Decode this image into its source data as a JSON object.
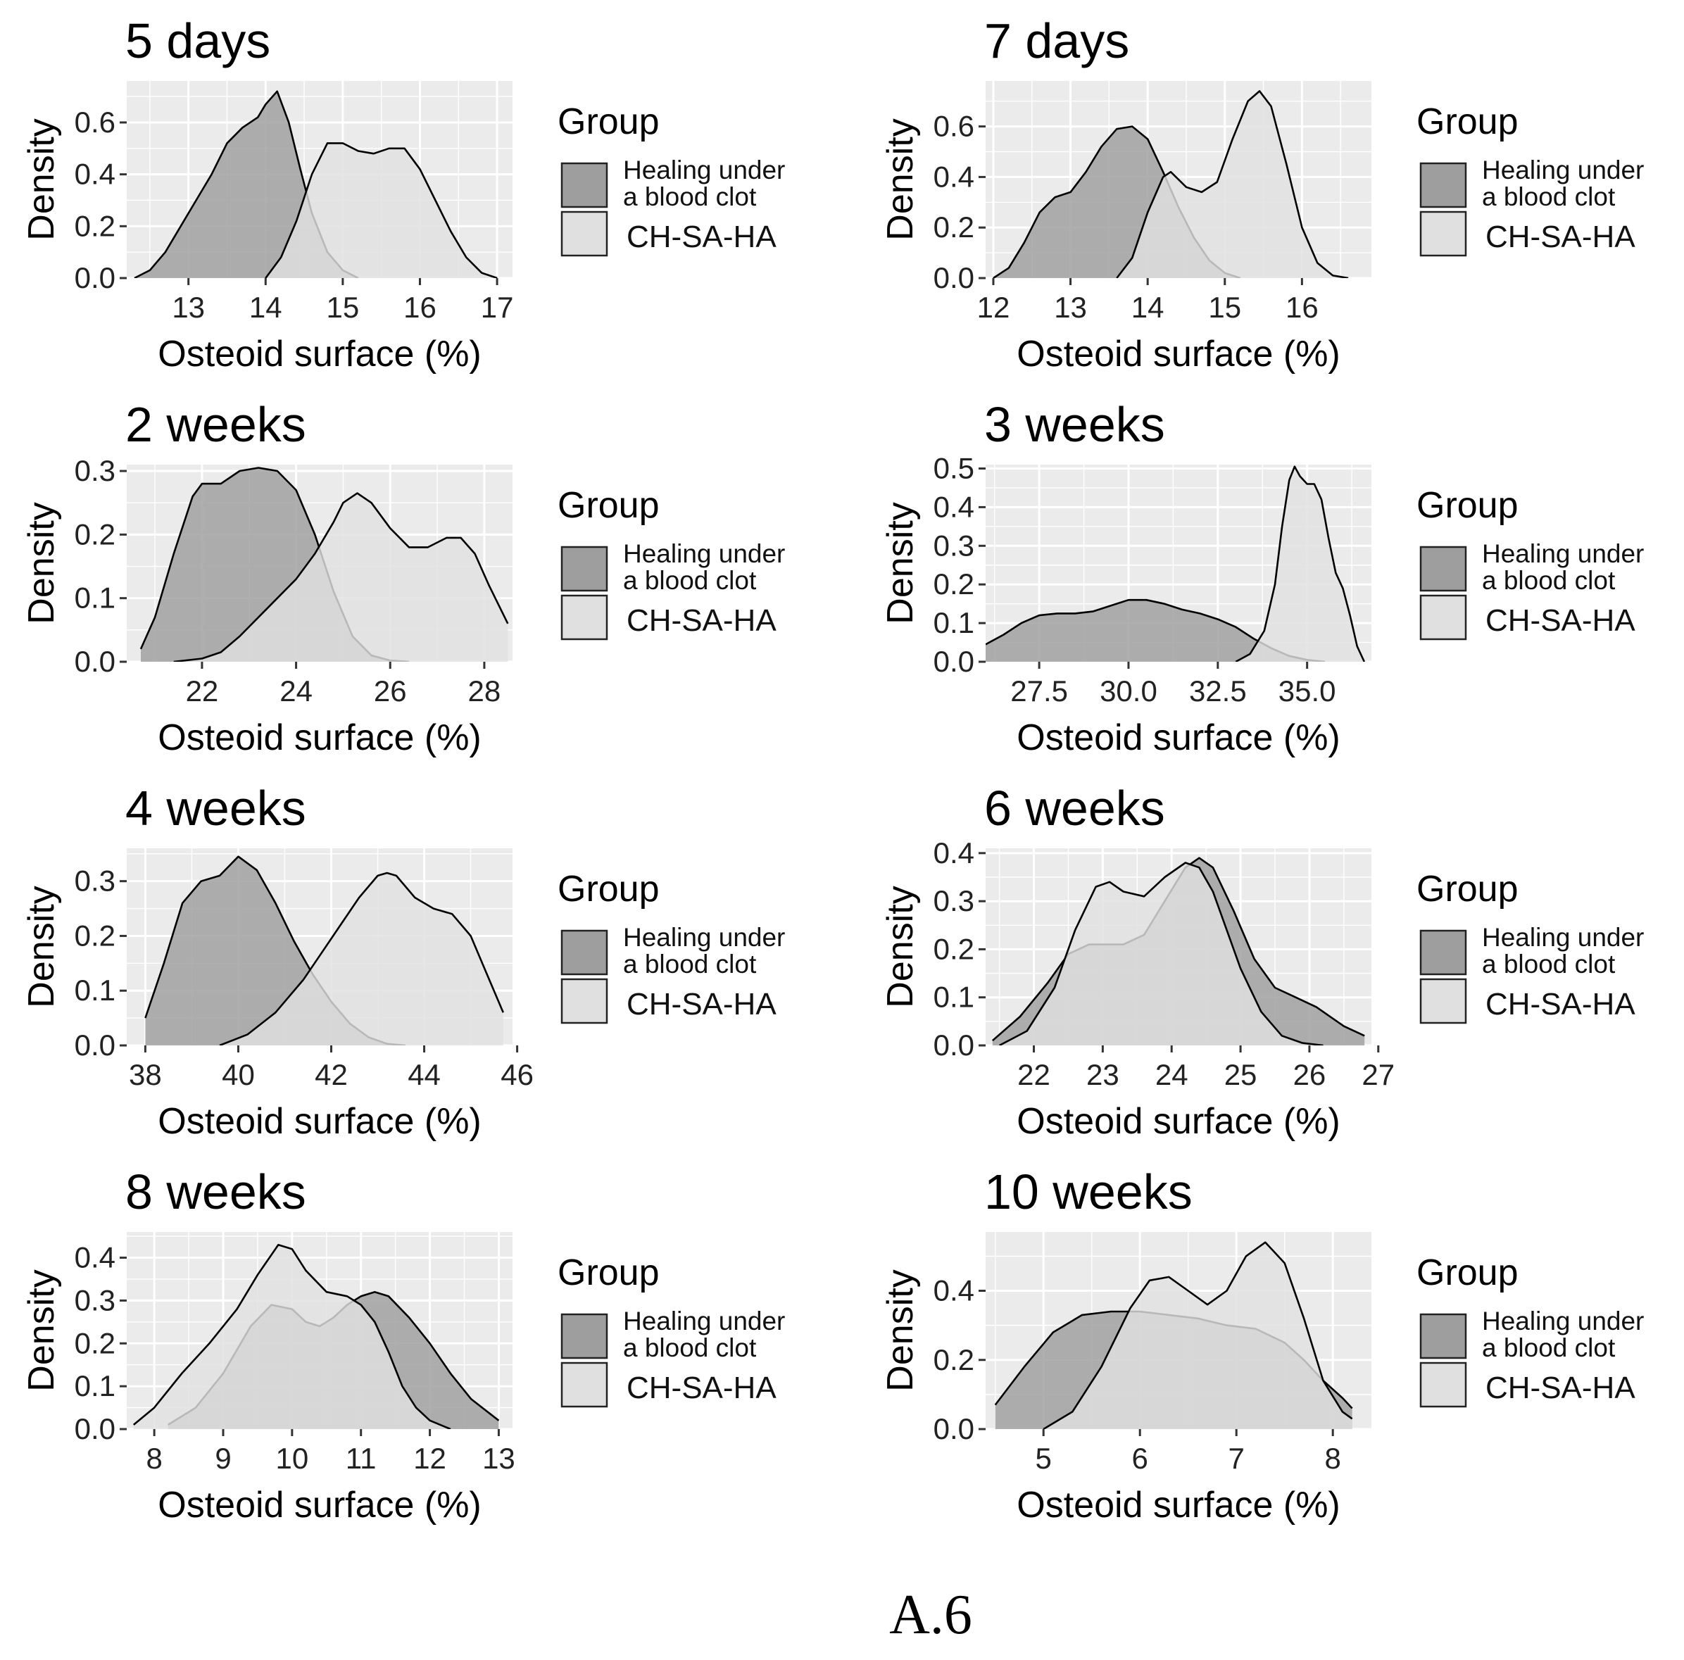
{
  "caption": "A.6",
  "colors": {
    "healing": "#9e9e9e",
    "chsaha": "#e0e0e0",
    "panel": "#ebebeb",
    "grid": "#ffffff",
    "outline": "#000000"
  },
  "chart_data": [
    {
      "type": "area",
      "title": "5 days",
      "xlabel": "Osteoid surface (%)",
      "ylabel": "Density",
      "xlim": [
        12.2,
        17.2
      ],
      "ylim": [
        0,
        0.76
      ],
      "xticks": [
        13,
        14,
        15,
        16,
        17
      ],
      "yticks": [
        0,
        0.2,
        0.4,
        0.6
      ],
      "tick_decimals": 1,
      "legend": {
        "title": "Group",
        "entries": [
          "Healing under a blood clot",
          "CH-SA-HA"
        ],
        "placement": "right"
      },
      "series": [
        {
          "name": "Healing under a blood clot",
          "x": [
            12.3,
            12.5,
            12.7,
            12.9,
            13.1,
            13.3,
            13.5,
            13.7,
            13.9,
            14.0,
            14.15,
            14.3,
            14.45,
            14.6,
            14.8,
            15.0,
            15.2
          ],
          "y": [
            0,
            0.03,
            0.1,
            0.2,
            0.3,
            0.4,
            0.52,
            0.58,
            0.62,
            0.67,
            0.72,
            0.6,
            0.42,
            0.25,
            0.1,
            0.03,
            0
          ]
        },
        {
          "name": "CH-SA-HA",
          "x": [
            14.0,
            14.2,
            14.4,
            14.6,
            14.8,
            15.0,
            15.2,
            15.4,
            15.6,
            15.8,
            16.0,
            16.2,
            16.4,
            16.6,
            16.8,
            17.0
          ],
          "y": [
            0,
            0.08,
            0.22,
            0.4,
            0.52,
            0.52,
            0.49,
            0.48,
            0.5,
            0.5,
            0.42,
            0.3,
            0.18,
            0.08,
            0.02,
            0
          ]
        }
      ]
    },
    {
      "type": "area",
      "title": "7 days",
      "xlabel": "Osteoid surface (%)",
      "ylabel": "Density",
      "xlim": [
        11.9,
        16.9
      ],
      "ylim": [
        0,
        0.78
      ],
      "xticks": [
        12,
        13,
        14,
        15,
        16
      ],
      "yticks": [
        0,
        0.2,
        0.4,
        0.6
      ],
      "tick_decimals": 1,
      "legend": {
        "title": "Group",
        "entries": [
          "Healing under a blood clot",
          "CH-SA-HA"
        ],
        "placement": "right"
      },
      "series": [
        {
          "name": "Healing under a blood clot",
          "x": [
            12.0,
            12.2,
            12.4,
            12.6,
            12.8,
            13.0,
            13.2,
            13.4,
            13.6,
            13.8,
            14.0,
            14.2,
            14.4,
            14.6,
            14.8,
            15.0,
            15.2
          ],
          "y": [
            0,
            0.04,
            0.14,
            0.26,
            0.32,
            0.34,
            0.42,
            0.52,
            0.59,
            0.6,
            0.55,
            0.42,
            0.28,
            0.16,
            0.07,
            0.02,
            0
          ]
        },
        {
          "name": "CH-SA-HA",
          "x": [
            13.6,
            13.8,
            14.0,
            14.2,
            14.3,
            14.5,
            14.7,
            14.9,
            15.1,
            15.3,
            15.45,
            15.6,
            15.8,
            16.0,
            16.2,
            16.4,
            16.6
          ],
          "y": [
            0,
            0.08,
            0.26,
            0.4,
            0.42,
            0.36,
            0.34,
            0.38,
            0.55,
            0.7,
            0.74,
            0.68,
            0.45,
            0.2,
            0.06,
            0.01,
            0
          ]
        }
      ]
    },
    {
      "type": "area",
      "title": "2 weeks",
      "xlabel": "Osteoid surface (%)",
      "ylabel": "Density",
      "xlim": [
        20.4,
        28.6
      ],
      "ylim": [
        0,
        0.31
      ],
      "xticks": [
        22,
        24,
        26,
        28
      ],
      "yticks": [
        0,
        0.1,
        0.2,
        0.3
      ],
      "tick_decimals": 1,
      "legend": {
        "title": "Group",
        "entries": [
          "Healing under a blood clot",
          "CH-SA-HA"
        ],
        "placement": "right"
      },
      "series": [
        {
          "name": "Healing under a blood clot",
          "x": [
            20.7,
            21.0,
            21.4,
            21.8,
            22.0,
            22.4,
            22.8,
            23.2,
            23.6,
            24.0,
            24.4,
            24.8,
            25.2,
            25.6,
            26.0,
            26.4
          ],
          "y": [
            0.02,
            0.07,
            0.17,
            0.26,
            0.28,
            0.28,
            0.3,
            0.305,
            0.3,
            0.27,
            0.2,
            0.11,
            0.04,
            0.01,
            0.002,
            0
          ]
        },
        {
          "name": "CH-SA-HA",
          "x": [
            21.4,
            22.0,
            22.4,
            22.8,
            23.2,
            23.6,
            24.0,
            24.4,
            24.8,
            25.0,
            25.3,
            25.6,
            26.0,
            26.4,
            26.8,
            27.2,
            27.5,
            27.8,
            28.1,
            28.5
          ],
          "y": [
            0,
            0.005,
            0.015,
            0.04,
            0.07,
            0.1,
            0.13,
            0.17,
            0.22,
            0.25,
            0.265,
            0.25,
            0.21,
            0.18,
            0.18,
            0.195,
            0.195,
            0.17,
            0.12,
            0.06
          ]
        }
      ]
    },
    {
      "type": "area",
      "title": "3 weeks",
      "xlabel": "Osteoid surface (%)",
      "ylabel": "Density",
      "xlim": [
        26.0,
        36.8
      ],
      "ylim": [
        0,
        0.51
      ],
      "xticks": [
        27.5,
        30.0,
        32.5,
        35.0
      ],
      "yticks": [
        0,
        0.1,
        0.2,
        0.3,
        0.4,
        0.5
      ],
      "tick_decimals": 1,
      "legend": {
        "title": "Group",
        "entries": [
          "Healing under a blood clot",
          "CH-SA-HA"
        ],
        "placement": "right"
      },
      "series": [
        {
          "name": "Healing under a blood clot",
          "x": [
            26.0,
            26.5,
            27.0,
            27.5,
            28.0,
            28.5,
            29.0,
            29.5,
            30.0,
            30.5,
            31.0,
            31.5,
            32.0,
            32.5,
            33.0,
            33.5,
            34.0,
            34.5,
            35.0,
            35.5
          ],
          "y": [
            0.045,
            0.07,
            0.1,
            0.12,
            0.125,
            0.125,
            0.13,
            0.145,
            0.16,
            0.16,
            0.15,
            0.135,
            0.125,
            0.11,
            0.09,
            0.06,
            0.035,
            0.015,
            0.005,
            0
          ]
        },
        {
          "name": "CH-SA-HA",
          "x": [
            33.0,
            33.4,
            33.8,
            34.1,
            34.3,
            34.5,
            34.65,
            34.8,
            35.0,
            35.2,
            35.4,
            35.6,
            35.8,
            36.0,
            36.2,
            36.4,
            36.6
          ],
          "y": [
            0,
            0.02,
            0.08,
            0.2,
            0.35,
            0.47,
            0.505,
            0.48,
            0.46,
            0.46,
            0.42,
            0.32,
            0.23,
            0.19,
            0.12,
            0.04,
            0
          ]
        }
      ]
    },
    {
      "type": "area",
      "title": "4 weeks",
      "xlabel": "Osteoid surface (%)",
      "ylabel": "Density",
      "xlim": [
        37.6,
        45.9
      ],
      "ylim": [
        0,
        0.36
      ],
      "xticks": [
        38,
        40,
        42,
        44,
        46
      ],
      "yticks": [
        0,
        0.1,
        0.2,
        0.3
      ],
      "tick_decimals": 1,
      "legend": {
        "title": "Group",
        "entries": [
          "Healing under a blood clot",
          "CH-SA-HA"
        ],
        "placement": "right"
      },
      "series": [
        {
          "name": "Healing under a blood clot",
          "x": [
            38.0,
            38.4,
            38.8,
            39.2,
            39.6,
            40.0,
            40.4,
            40.8,
            41.2,
            41.6,
            42.0,
            42.4,
            42.8,
            43.2,
            43.6
          ],
          "y": [
            0.05,
            0.15,
            0.26,
            0.3,
            0.31,
            0.345,
            0.32,
            0.26,
            0.19,
            0.13,
            0.08,
            0.04,
            0.015,
            0.003,
            0
          ]
        },
        {
          "name": "CH-SA-HA",
          "x": [
            39.6,
            40.2,
            40.8,
            41.4,
            41.8,
            42.2,
            42.6,
            43.0,
            43.2,
            43.4,
            43.8,
            44.2,
            44.6,
            45.0,
            45.4,
            45.7
          ],
          "y": [
            0,
            0.02,
            0.06,
            0.12,
            0.17,
            0.22,
            0.27,
            0.31,
            0.315,
            0.31,
            0.27,
            0.25,
            0.24,
            0.2,
            0.12,
            0.06
          ]
        }
      ]
    },
    {
      "type": "area",
      "title": "6 weeks",
      "xlabel": "Osteoid surface (%)",
      "ylabel": "Density",
      "xlim": [
        21.3,
        26.9
      ],
      "ylim": [
        0,
        0.41
      ],
      "xticks": [
        22,
        23,
        24,
        25,
        26,
        27
      ],
      "yticks": [
        0,
        0.1,
        0.2,
        0.3,
        0.4
      ],
      "tick_decimals": 1,
      "legend": {
        "title": "Group",
        "entries": [
          "Healing under a blood clot",
          "CH-SA-HA"
        ],
        "placement": "right"
      },
      "series": [
        {
          "name": "Healing under a blood clot",
          "x": [
            21.4,
            21.8,
            22.2,
            22.5,
            22.8,
            23.0,
            23.3,
            23.6,
            23.9,
            24.2,
            24.4,
            24.6,
            24.9,
            25.2,
            25.5,
            25.8,
            26.1,
            26.5,
            26.8
          ],
          "y": [
            0.01,
            0.06,
            0.13,
            0.19,
            0.21,
            0.21,
            0.21,
            0.23,
            0.3,
            0.37,
            0.39,
            0.37,
            0.28,
            0.18,
            0.12,
            0.1,
            0.08,
            0.04,
            0.02
          ]
        },
        {
          "name": "CH-SA-HA",
          "x": [
            21.5,
            21.9,
            22.3,
            22.6,
            22.9,
            23.1,
            23.3,
            23.6,
            23.9,
            24.2,
            24.4,
            24.6,
            24.8,
            25.0,
            25.3,
            25.6,
            25.9,
            26.2
          ],
          "y": [
            0,
            0.03,
            0.12,
            0.24,
            0.33,
            0.34,
            0.32,
            0.31,
            0.35,
            0.38,
            0.37,
            0.32,
            0.24,
            0.16,
            0.07,
            0.02,
            0.005,
            0
          ]
        }
      ]
    },
    {
      "type": "area",
      "title": "8 weeks",
      "xlabel": "Osteoid surface (%)",
      "ylabel": "Density",
      "xlim": [
        7.6,
        13.2
      ],
      "ylim": [
        0,
        0.46
      ],
      "xticks": [
        8,
        9,
        10,
        11,
        12,
        13
      ],
      "yticks": [
        0,
        0.1,
        0.2,
        0.3,
        0.4
      ],
      "tick_decimals": 1,
      "legend": {
        "title": "Group",
        "entries": [
          "Healing under a blood clot",
          "CH-SA-HA"
        ],
        "placement": "right"
      },
      "series": [
        {
          "name": "Healing under a blood clot",
          "x": [
            8.2,
            8.6,
            9.0,
            9.4,
            9.7,
            10.0,
            10.2,
            10.4,
            10.6,
            10.8,
            11.0,
            11.2,
            11.4,
            11.7,
            12.0,
            12.3,
            12.6,
            13.0
          ],
          "y": [
            0.01,
            0.05,
            0.13,
            0.24,
            0.29,
            0.28,
            0.25,
            0.24,
            0.26,
            0.29,
            0.31,
            0.32,
            0.31,
            0.26,
            0.2,
            0.13,
            0.07,
            0.02
          ]
        },
        {
          "name": "CH-SA-HA",
          "x": [
            7.7,
            8.0,
            8.4,
            8.8,
            9.2,
            9.5,
            9.8,
            10.0,
            10.2,
            10.5,
            10.8,
            11.0,
            11.2,
            11.4,
            11.6,
            11.8,
            12.0,
            12.3
          ],
          "y": [
            0.01,
            0.05,
            0.13,
            0.2,
            0.28,
            0.36,
            0.43,
            0.42,
            0.37,
            0.32,
            0.31,
            0.29,
            0.25,
            0.18,
            0.1,
            0.05,
            0.02,
            0
          ]
        }
      ]
    },
    {
      "type": "area",
      "title": "10 weeks",
      "xlabel": "Osteoid surface (%)",
      "ylabel": "Density",
      "xlim": [
        4.4,
        8.4
      ],
      "ylim": [
        0,
        0.57
      ],
      "xticks": [
        5,
        6,
        7,
        8
      ],
      "yticks": [
        0,
        0.2,
        0.4
      ],
      "tick_decimals": 1,
      "legend": {
        "title": "Group",
        "entries": [
          "Healing under a blood clot",
          "CH-SA-HA"
        ],
        "placement": "right"
      },
      "series": [
        {
          "name": "Healing under a blood clot",
          "x": [
            4.5,
            4.8,
            5.1,
            5.4,
            5.7,
            6.0,
            6.3,
            6.6,
            6.9,
            7.2,
            7.5,
            7.7,
            7.9,
            8.1,
            8.2
          ],
          "y": [
            0.07,
            0.18,
            0.28,
            0.33,
            0.34,
            0.34,
            0.33,
            0.32,
            0.3,
            0.29,
            0.25,
            0.2,
            0.14,
            0.09,
            0.06
          ]
        },
        {
          "name": "CH-SA-HA",
          "x": [
            5.0,
            5.3,
            5.6,
            5.9,
            6.1,
            6.3,
            6.5,
            6.7,
            6.9,
            7.1,
            7.3,
            7.5,
            7.7,
            7.9,
            8.1,
            8.2
          ],
          "y": [
            0,
            0.05,
            0.18,
            0.35,
            0.43,
            0.44,
            0.4,
            0.36,
            0.4,
            0.5,
            0.54,
            0.48,
            0.32,
            0.14,
            0.05,
            0.03
          ]
        }
      ]
    }
  ]
}
